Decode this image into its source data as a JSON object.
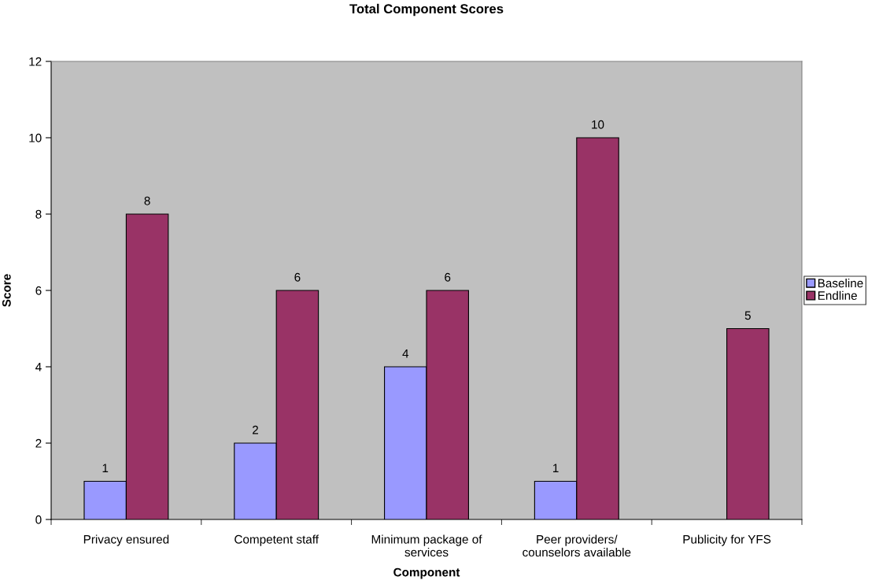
{
  "chart_data": {
    "type": "bar",
    "title": "Total Component Scores",
    "xlabel": "Component",
    "ylabel": "Score",
    "categories": [
      "Privacy ensured",
      "Competent staff",
      "Minimum package of\nservices",
      "Peer providers/\ncounselors available",
      "Publicity for YFS"
    ],
    "series": [
      {
        "name": "Baseline",
        "color": "#9999ff",
        "values": [
          1,
          2,
          4,
          1,
          null
        ]
      },
      {
        "name": "Endline",
        "color": "#993366",
        "values": [
          8,
          6,
          6,
          10,
          5
        ]
      }
    ],
    "ylim": [
      0,
      12
    ],
    "yticks": [
      0,
      2,
      4,
      6,
      8,
      10,
      12
    ],
    "grid": false,
    "legend": "right",
    "data_labels": true
  }
}
